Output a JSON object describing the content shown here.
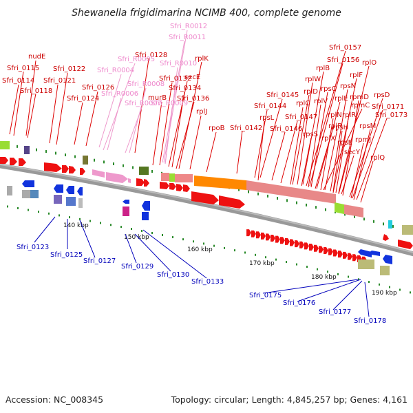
{
  "title": "Shewanella frigidimarina NCIMB 400, complete genome",
  "footer": {
    "accession": "Accession: NC_008345",
    "topology": "Topology: circular; Length: 4,845,257 bp; Genes: 4,161"
  },
  "colors": {
    "forward_gene": "#ee1111",
    "reverse_gene": "#1133dd",
    "rna_gene": "#ee99cc",
    "backbone": "#999999",
    "label_top": "#cc0000",
    "label_rna": "#ee88cc",
    "label_bottom": "#0000bb",
    "ticks": "#228822",
    "orange_feature": "#ff8800",
    "pink_feature": "#e88888",
    "lime_feature": "#99dd33",
    "olive_feature": "#bbbb77"
  },
  "scale_labels": [
    "140 kbp",
    "150 kbp",
    "160 kbp",
    "170 kbp",
    "180 kbp",
    "190 kbp"
  ],
  "labels_top": [
    "nudE",
    "Sfri_0115",
    "Sfri_0114",
    "Sfri_0118",
    "Sfri_0122",
    "Sfri_0121",
    "Sfri_0126",
    "Sfri_0124",
    "Sfri_0128",
    "Sfri_0132",
    "murB",
    "Sfri_0134",
    "Sfri_0136",
    "secE",
    "rplK",
    "rplJ",
    "rpoB",
    "Sfri_0142",
    "Sfri_0145",
    "Sfri_0144",
    "rpsL",
    "Sfri_0146",
    "Sfri_0147",
    "Sfri_0157",
    "Sfri_0156",
    "rplB",
    "rplW",
    "rplD",
    "rpsC",
    "rplC",
    "rplV",
    "rplE",
    "rpmC",
    "rpsS",
    "rplX",
    "rplN",
    "rplP",
    "rpsN",
    "rpsH",
    "rplR",
    "rpsE",
    "secY",
    "rplF",
    "rplO",
    "rpmD",
    "rpsD",
    "Sfri_0171",
    "Sfri_0173",
    "rpsM",
    "rpmJ",
    "rplQ"
  ],
  "labels_rna": [
    "Sfri_R0012",
    "Sfri_R0011",
    "Sfri_R0005",
    "Sfri_R0004",
    "Sfri_R0010",
    "Sfri_R0008",
    "Sfri_R0006",
    "Sfri_R0007",
    "Sfri_R0009"
  ],
  "labels_bottom": [
    "Sfri_0123",
    "Sfri_0125",
    "Sfri_0127",
    "Sfri_0129",
    "Sfri_0130",
    "Sfri_0133",
    "Sfri_0175",
    "Sfri_0176",
    "Sfri_0177",
    "Sfri_0178"
  ]
}
